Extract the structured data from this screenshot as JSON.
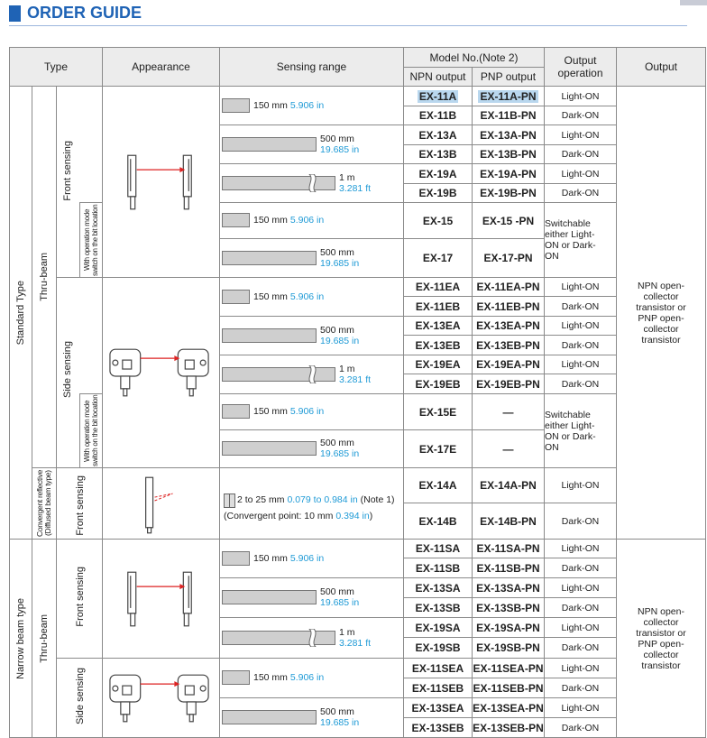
{
  "header": {
    "title": "ORDER GUIDE"
  },
  "table": {
    "columns": {
      "type": "Type",
      "appearance": "Appearance",
      "sensing_range": "Sensing range",
      "model_no": "Model No.(Note 2)",
      "npn": "NPN output",
      "pnp": "PNP output",
      "output_operation": "Output operation",
      "output": "Output"
    },
    "type_labels": {
      "standard": "Standard Type",
      "narrow": "Narrow beam type",
      "thru_beam_standard": "Thru-beam",
      "thru_beam_narrow": "Thru-beam",
      "front_sensing_1": "Front sensing",
      "side_sensing_1": "Side sensing",
      "switch_note_1": "With operation mode switch on the bit location",
      "switch_note_2": "With operation mode switch on the bit location",
      "convergent": "Convergent reflective (Diffused beam type)",
      "front_sensing_2": "Front sensing",
      "front_sensing_3": "Front sensing",
      "side_sensing_2": "Side sensing"
    },
    "models": [
      {
        "npn": "EX-11A",
        "pnp": "EX-11A-PN"
      },
      {
        "npn": "EX-11B",
        "pnp": "EX-11B-PN"
      },
      {
        "npn": "EX-13A",
        "pnp": "EX-13A-PN"
      },
      {
        "npn": "EX-13B",
        "pnp": "EX-13B-PN"
      },
      {
        "npn": "EX-19A",
        "pnp": "EX-19A-PN"
      },
      {
        "npn": "EX-19B",
        "pnp": "EX-19B-PN"
      },
      {
        "npn": "EX-15",
        "pnp": "EX-15 -PN"
      },
      {
        "npn": "EX-17",
        "pnp": "EX-17-PN"
      },
      {
        "npn": "EX-11EA",
        "pnp": "EX-11EA-PN"
      },
      {
        "npn": "EX-11EB",
        "pnp": "EX-11EB-PN"
      },
      {
        "npn": "EX-13EA",
        "pnp": "EX-13EA-PN"
      },
      {
        "npn": "EX-13EB",
        "pnp": "EX-13EB-PN"
      },
      {
        "npn": "EX-19EA",
        "pnp": "EX-19EA-PN"
      },
      {
        "npn": "EX-19EB",
        "pnp": "EX-19EB-PN"
      },
      {
        "npn": "EX-15E",
        "pnp": "—"
      },
      {
        "npn": "EX-17E",
        "pnp": "—"
      },
      {
        "npn": "EX-14A",
        "pnp": "EX-14A-PN"
      },
      {
        "npn": "EX-14B",
        "pnp": "EX-14B-PN"
      },
      {
        "npn": "EX-11SA",
        "pnp": "EX-11SA-PN"
      },
      {
        "npn": "EX-11SB",
        "pnp": "EX-11SB-PN"
      },
      {
        "npn": "EX-13SA",
        "pnp": "EX-13SA-PN"
      },
      {
        "npn": "EX-13SB",
        "pnp": "EX-13SB-PN"
      },
      {
        "npn": "EX-19SA",
        "pnp": "EX-19SA-PN"
      },
      {
        "npn": "EX-19SB",
        "pnp": "EX-19SB-PN"
      },
      {
        "npn": "EX-11SEA",
        "pnp": "EX-11SEA-PN"
      },
      {
        "npn": "EX-11SEB",
        "pnp": "EX-11SEB-PN"
      },
      {
        "npn": "EX-13SEA",
        "pnp": "EX-13SEA-PN"
      },
      {
        "npn": "EX-13SEB",
        "pnp": "EX-13SEB-PN"
      }
    ],
    "operations": [
      "Light-ON",
      "Dark-ON",
      "Light-ON",
      "Dark-ON",
      "Light-ON",
      "Dark-ON",
      "Switchable either Light-ON or Dark-ON",
      "Light-ON",
      "Dark-ON",
      "Light-ON",
      "Dark-ON",
      "Light-ON",
      "Dark-ON",
      "Switchable either Light-ON or Dark-ON",
      "Light-ON",
      "Dark-ON",
      "Light-ON",
      "Dark-ON",
      "Light-ON",
      "Dark-ON",
      "Light-ON",
      "Dark-ON",
      "Light-ON",
      "Dark-ON",
      "Light-ON",
      "Dark-ON"
    ],
    "ranges": [
      {
        "value": "150 mm",
        "inch": "5.906 in"
      },
      {
        "value": "500 mm",
        "inch": "19.685 in"
      },
      {
        "value": "1 m",
        "inch": "3.281 ft"
      },
      {
        "value": "150 mm",
        "inch": "5.906 in"
      },
      {
        "value": "500 mm",
        "inch": "19.685 in"
      },
      {
        "value": "150 mm",
        "inch": "5.906 in"
      },
      {
        "value": "500 mm",
        "inch": "19.685 in"
      },
      {
        "value": "1 m",
        "inch": "3.281 ft"
      },
      {
        "value": "150 mm",
        "inch": "5.906 in"
      },
      {
        "value": "500 mm",
        "inch": "19.685 in"
      },
      {
        "value": "2 to 25 mm",
        "inch": "0.079 to 0.984 in",
        "note": "(Note 1)",
        "convergent": "(Convergent point: 10 mm",
        "convergent_inch": "0.394 in",
        "close": ")"
      },
      {
        "value": "150 mm",
        "inch": "5.906 in"
      },
      {
        "value": "500 mm",
        "inch": "19.685 in"
      },
      {
        "value": "1 m",
        "inch": "3.281 ft"
      },
      {
        "value": "150 mm",
        "inch": "5.906 in"
      },
      {
        "value": "500 mm",
        "inch": "19.685 in"
      }
    ],
    "outputs": [
      "NPN open-collector transistor or PNP open-collector transistor",
      "NPN open-collector transistor or PNP open-collector transistor"
    ]
  }
}
